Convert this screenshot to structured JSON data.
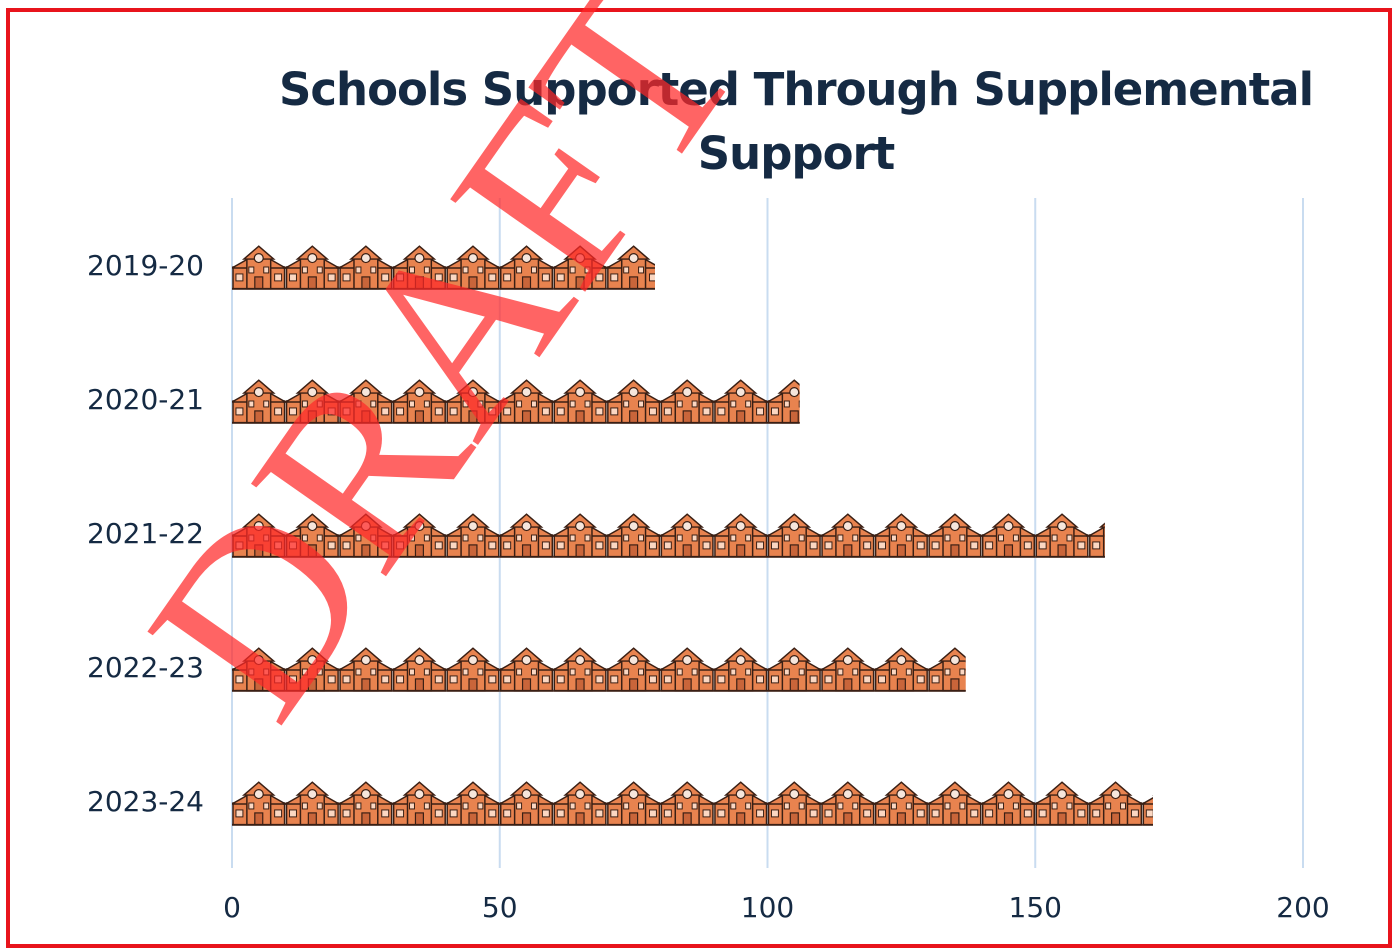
{
  "chart_data": {
    "type": "bar",
    "orientation": "horizontal",
    "style": "pictograph",
    "icon": "school-building-icon",
    "title": "Schools Supported Through Supplemental Support",
    "categories": [
      "2019-20",
      "2020-21",
      "2021-22",
      "2022-23",
      "2023-24"
    ],
    "values": [
      79,
      106,
      163,
      137,
      172
    ],
    "xlim": [
      0,
      200
    ],
    "xticks": [
      "0",
      "50",
      "100",
      "150",
      "200"
    ],
    "grid": "vertical",
    "legend": "none"
  },
  "watermark": "DRAFT",
  "colors": {
    "icon_fill": "#e8834f",
    "icon_outline": "#3a1f14",
    "grid": "#c9dcf0",
    "title": "#152a43",
    "frame": "#e8141c",
    "watermark": "#ff2828"
  }
}
